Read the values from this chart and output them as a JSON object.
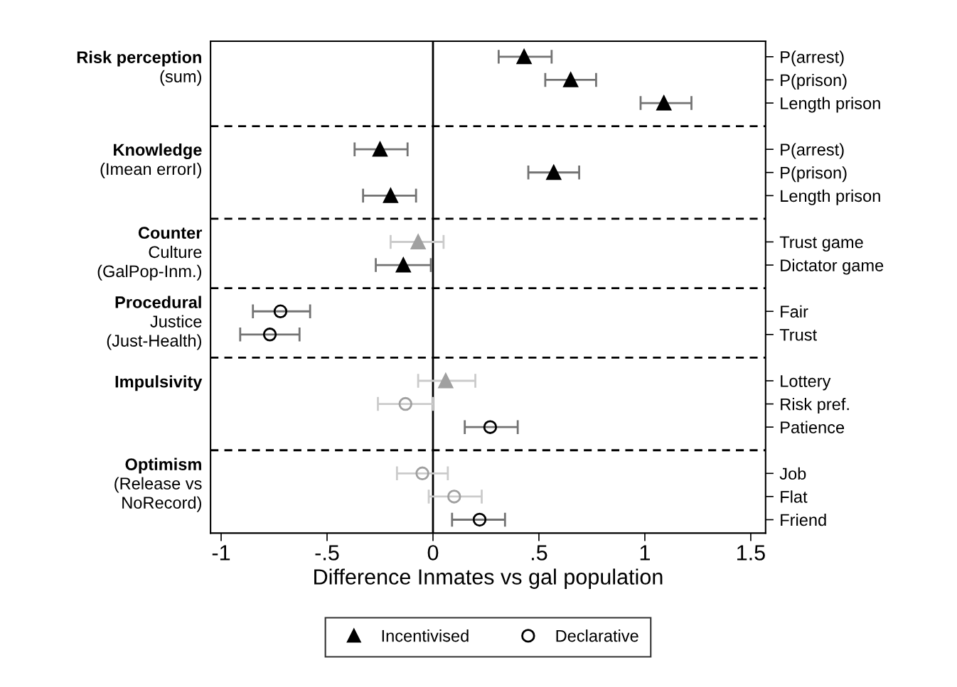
{
  "chart_data": {
    "type": "scatter",
    "orientation": "horizontal",
    "xlabel": "Difference Inmates vs gal population",
    "categories": [
      "P(arrest)",
      "P(prison)",
      "Length prison",
      null,
      "P(arrest)",
      "P(prison)",
      "Length prison",
      null,
      "Trust game",
      "Dictator game",
      null,
      "Fair",
      "Trust",
      null,
      "Lottery",
      "Risk pref.",
      "Patience",
      null,
      "Job",
      "Flat",
      "Friend"
    ],
    "series": [
      {
        "name": "Incentivised",
        "marker": "triangle",
        "color": "#000000",
        "colors": [
          "#000000",
          "#000000",
          "#000000",
          null,
          "#000000",
          "#000000",
          "#000000",
          null,
          "#a0a0a0",
          "#000000",
          null,
          null,
          null,
          null,
          "#a0a0a0",
          null,
          null,
          null,
          null,
          null,
          null
        ],
        "values": [
          0.43,
          0.65,
          1.09,
          null,
          -0.25,
          0.57,
          -0.2,
          null,
          -0.07,
          -0.14,
          null,
          null,
          null,
          null,
          0.06,
          null,
          null,
          null,
          null,
          null,
          null
        ],
        "errors": [
          [
            0.31,
            0.56
          ],
          [
            0.53,
            0.77
          ],
          [
            0.98,
            1.22
          ],
          null,
          [
            -0.37,
            -0.12
          ],
          [
            0.45,
            0.69
          ],
          [
            -0.33,
            -0.08
          ],
          null,
          [
            -0.2,
            0.05
          ],
          [
            -0.27,
            -0.01
          ],
          null,
          null,
          null,
          null,
          [
            -0.07,
            0.2
          ],
          null,
          null,
          null,
          null,
          null,
          null
        ]
      },
      {
        "name": "Declarative",
        "marker": "circle",
        "color": "#000000",
        "colors": [
          null,
          null,
          null,
          null,
          null,
          null,
          null,
          null,
          null,
          null,
          null,
          "#000000",
          "#000000",
          null,
          null,
          "#a0a0a0",
          "#000000",
          null,
          "#a0a0a0",
          "#a0a0a0",
          "#000000"
        ],
        "values": [
          null,
          null,
          null,
          null,
          null,
          null,
          null,
          null,
          null,
          null,
          null,
          -0.72,
          -0.77,
          null,
          null,
          -0.13,
          0.27,
          null,
          -0.05,
          0.1,
          0.22
        ],
        "errors": [
          null,
          null,
          null,
          null,
          null,
          null,
          null,
          null,
          null,
          null,
          null,
          [
            -0.85,
            -0.58
          ],
          [
            -0.91,
            -0.63
          ],
          null,
          null,
          [
            -0.26,
            0.0
          ],
          [
            0.15,
            0.4
          ],
          null,
          [
            -0.17,
            0.07
          ],
          [
            -0.02,
            0.23
          ],
          [
            0.09,
            0.34
          ]
        ]
      }
    ],
    "xlim": [
      -1.05,
      1.57
    ],
    "xticks": [
      {
        "value": -1,
        "label": "-1"
      },
      {
        "value": -0.5,
        "label": "-.5"
      },
      0,
      {
        "value": 0.5,
        "label": ".5"
      },
      1,
      {
        "value": 1.5,
        "label": "1.5"
      }
    ],
    "ref_lines": [
      {
        "axis": "x",
        "value": 0,
        "color": "#000000",
        "line_style": "solid"
      }
    ],
    "annotations": [
      "Risk perception\n(sum)",
      "Knowledge\n(Imean errorI)",
      "Counter\nCulture\n(GalPop-Inm.)",
      "Procedural\nJustice\n(Just-Health)",
      "Impulsivity",
      "Optimism\n(Release vs\nNoRecord)"
    ],
    "legend": "bottom",
    "grid": "y"
  }
}
